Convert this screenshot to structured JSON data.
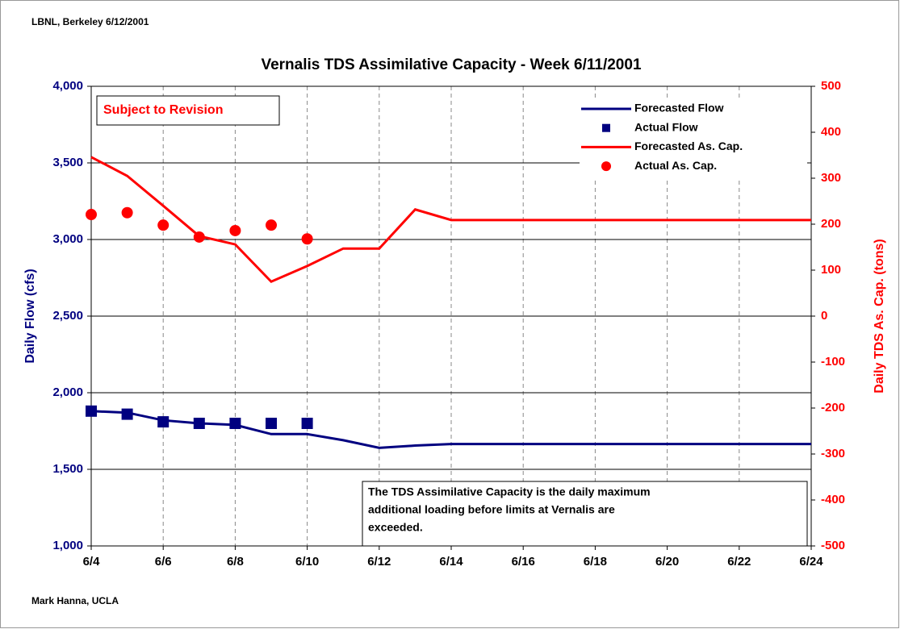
{
  "chart_data": {
    "type": "line",
    "header": "LBNL, Berkeley 6/12/2001",
    "title": "Vernalis TDS Assimilative Capacity - Week 6/11/2001",
    "stamp": "Subject to Revision",
    "note": [
      "The TDS Assimilative Capacity is the daily maximum",
      "additional loading before limits at Vernalis are",
      "exceeded."
    ],
    "footer": "Mark Hanna, UCLA",
    "ylabel": "Daily Flow (cfs)",
    "y2label": "Daily TDS As. Cap. (tons)",
    "categories": [
      "6/4",
      null,
      "6/6",
      null,
      "6/8",
      null,
      "6/10",
      null,
      "6/12",
      null,
      "6/14",
      null,
      "6/16",
      null,
      "6/18",
      null,
      "6/20",
      null,
      "6/22",
      null,
      "6/24"
    ],
    "ylim": [
      1000,
      4000
    ],
    "yticks": [
      {
        "value": 1000,
        "label": "1,000"
      },
      {
        "value": 1500,
        "label": "1,500"
      },
      {
        "value": 2000,
        "label": "2,000"
      },
      {
        "value": 2500,
        "label": "2,500"
      },
      {
        "value": 3000,
        "label": "3,000"
      },
      {
        "value": 3500,
        "label": "3,500"
      },
      {
        "value": 4000,
        "label": "4,000"
      }
    ],
    "y2lim": [
      -500,
      500
    ],
    "y2ticks": [
      -500,
      -400,
      -300,
      -200,
      -100,
      0,
      100,
      200,
      300,
      400,
      500
    ],
    "grid": true,
    "legend": "top-right",
    "series": [
      {
        "name": "Forecasted Flow",
        "color": "#000080",
        "mode": "line",
        "values": [
          1880,
          1870,
          1820,
          1800,
          1790,
          1730,
          1730,
          1690,
          1640,
          1655,
          1665,
          1665,
          1665,
          1665,
          1665,
          1665,
          1665,
          1665,
          1665,
          1665,
          1665
        ]
      },
      {
        "name": "Actual Flow",
        "color": "#000080",
        "mode": "markers",
        "marker": "square",
        "values": [
          1880,
          1860,
          1810,
          1800,
          1800,
          1800,
          1800,
          null,
          null,
          null,
          null,
          null,
          null,
          null,
          null,
          null,
          null,
          null,
          null,
          null,
          null
        ]
      },
      {
        "name": "Forecasted As. Cap.",
        "color": "#ff0000",
        "mode": "line",
        "axis": "y2",
        "values": [
          346,
          305,
          240,
          174,
          156,
          75,
          109,
          147,
          147,
          232,
          209,
          209,
          209,
          209,
          209,
          209,
          209,
          209,
          209,
          209,
          209
        ]
      },
      {
        "name": "Actual As. Cap.",
        "color": "#ff0000",
        "mode": "markers",
        "marker": "circle",
        "axis": "y2",
        "values": [
          221,
          225,
          198,
          172,
          186,
          198,
          168,
          null,
          null,
          null,
          null,
          null,
          null,
          null,
          null,
          null,
          null,
          null,
          null,
          null,
          null
        ]
      }
    ]
  }
}
